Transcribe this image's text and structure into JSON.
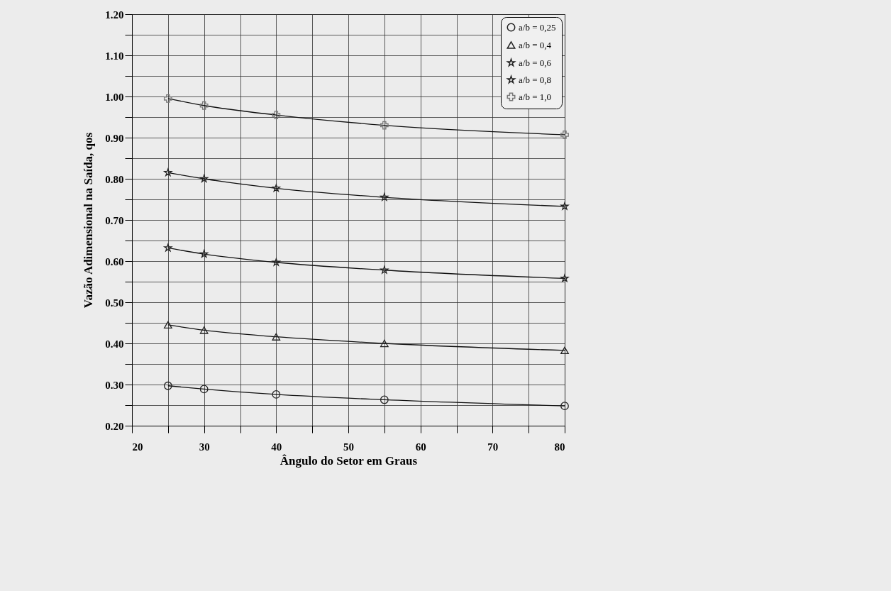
{
  "chart_data": {
    "type": "line",
    "xlabel": "Ângulo do Setor em Graus",
    "ylabel": "Vazão Adimensional na Saída, qos",
    "x": [
      25,
      30,
      40,
      55,
      80
    ],
    "series": [
      {
        "name": "a/b = 0,25",
        "color": "#222222",
        "marker": "circle",
        "values": [
          0.297,
          0.289,
          0.276,
          0.263,
          0.248
        ]
      },
      {
        "name": "a/b = 0,4",
        "color": "#222222",
        "marker": "triangle",
        "values": [
          0.445,
          0.432,
          0.416,
          0.4,
          0.383
        ]
      },
      {
        "name": "a/b = 0,6",
        "color": "#222222",
        "marker": "star",
        "values": [
          0.632,
          0.617,
          0.597,
          0.578,
          0.558
        ]
      },
      {
        "name": "a/b = 0,8",
        "color": "#222222",
        "marker": "star",
        "values": [
          0.815,
          0.8,
          0.777,
          0.755,
          0.733
        ]
      },
      {
        "name": "a/b = 1,0",
        "color": "#777777",
        "marker": "cross",
        "values": [
          0.995,
          0.978,
          0.955,
          0.93,
          0.907
        ]
      }
    ],
    "xlim": [
      20,
      80
    ],
    "xticks": [
      20,
      {
        "value": 25,
        "label": null
      },
      30,
      {
        "value": 35,
        "label": null
      },
      40,
      {
        "value": 45,
        "label": null
      },
      50,
      {
        "value": 55,
        "label": null
      },
      60,
      {
        "value": 65,
        "label": null
      },
      70,
      {
        "value": 75,
        "label": null
      },
      80
    ],
    "ylim": [
      0.2,
      1.2
    ],
    "yticks": [
      {
        "value": 0.2,
        "label": "0.20"
      },
      {
        "value": 0.25,
        "label": null
      },
      {
        "value": 0.3,
        "label": "0.30"
      },
      {
        "value": 0.35,
        "label": null
      },
      {
        "value": 0.4,
        "label": "0.40"
      },
      {
        "value": 0.45,
        "label": null
      },
      {
        "value": 0.5,
        "label": "0.50"
      },
      {
        "value": 0.55,
        "label": null
      },
      {
        "value": 0.6,
        "label": "0.60"
      },
      {
        "value": 0.65,
        "label": null
      },
      {
        "value": 0.7,
        "label": "0.70"
      },
      {
        "value": 0.75,
        "label": null
      },
      {
        "value": 0.8,
        "label": "0.80"
      },
      {
        "value": 0.85,
        "label": null
      },
      {
        "value": 0.9,
        "label": "0.90"
      },
      {
        "value": 0.95,
        "label": null
      },
      {
        "value": 1.0,
        "label": "1.00"
      },
      {
        "value": 1.05,
        "label": null
      },
      {
        "value": 1.1,
        "label": "1.10"
      },
      {
        "value": 1.15,
        "label": null
      },
      {
        "value": 1.2,
        "label": "1.20"
      }
    ],
    "grid": true,
    "legend": "top right",
    "line_style": "solid"
  }
}
